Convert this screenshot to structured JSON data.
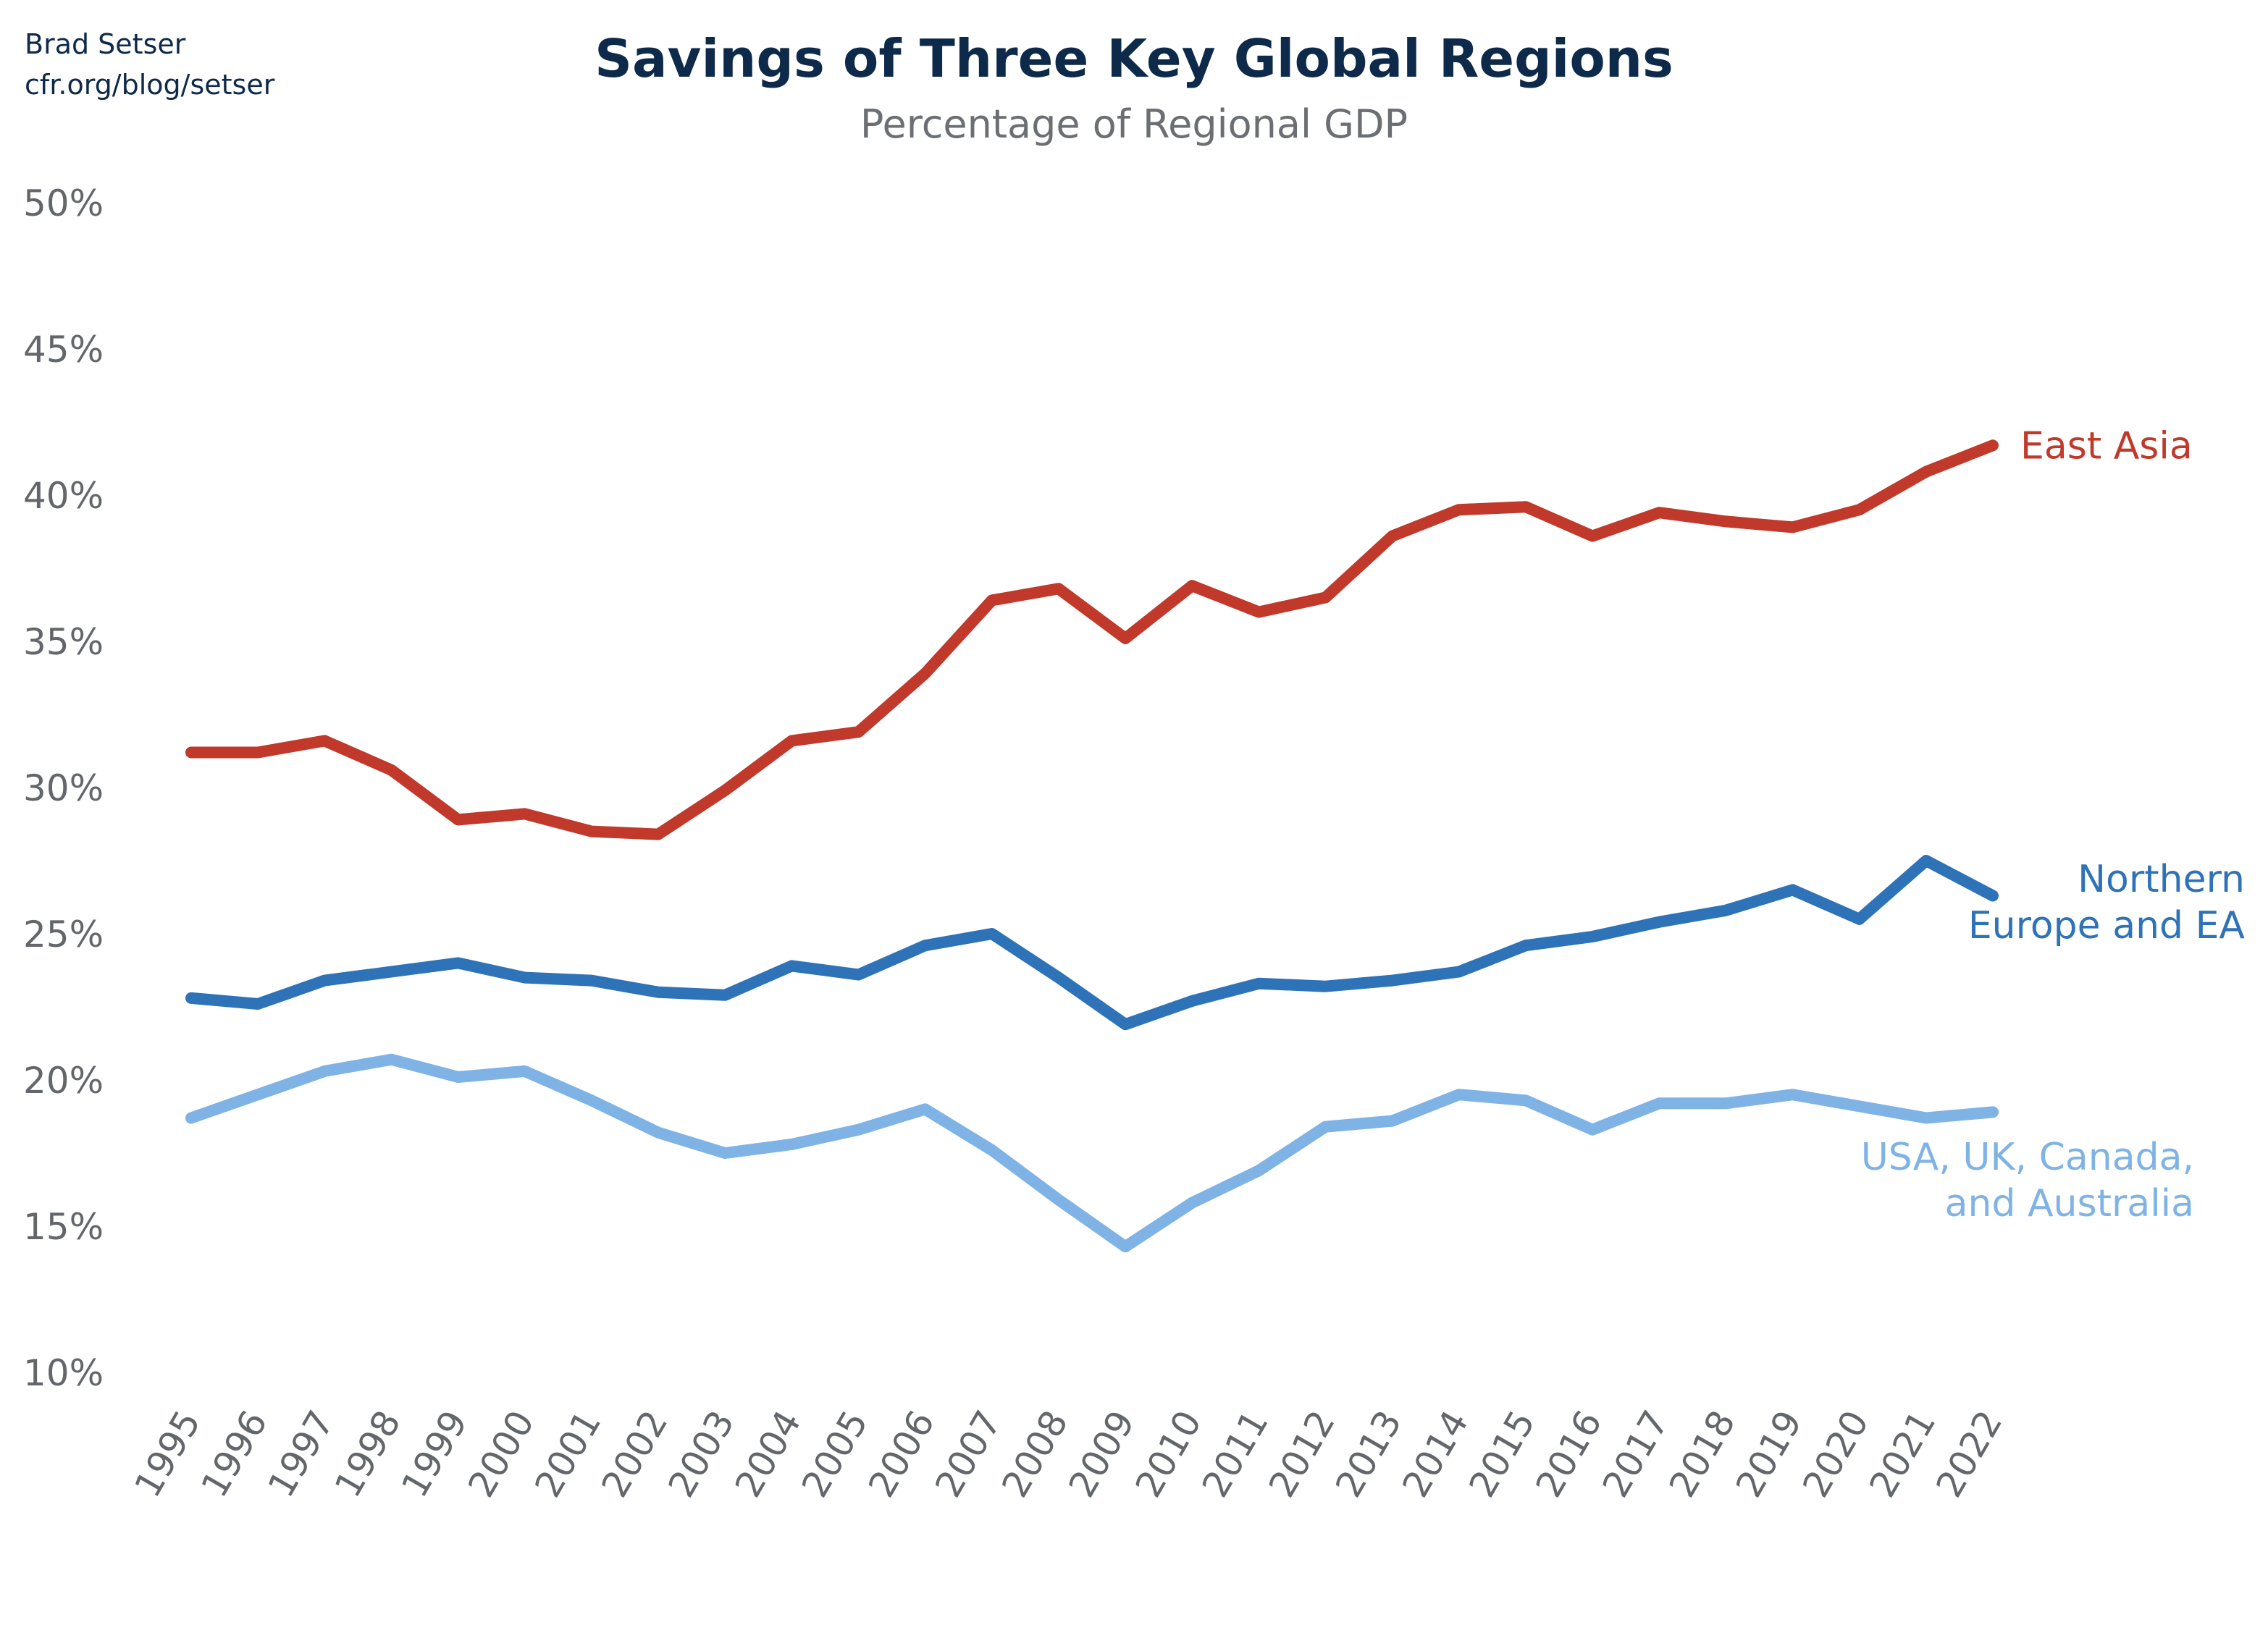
{
  "credit": {
    "author": "Brad Setser",
    "site": "cfr.org/blog/setser"
  },
  "chart_data": {
    "type": "line",
    "title": "Savings of Three Key Global Regions",
    "subtitle": "Percentage of Regional GDP",
    "xlabel": "",
    "ylabel": "",
    "ylim": [
      10,
      50
    ],
    "yticks": [
      "10%",
      "15%",
      "20%",
      "25%",
      "30%",
      "35%",
      "40%",
      "45%",
      "50%"
    ],
    "ytick_values": [
      10,
      15,
      20,
      25,
      30,
      35,
      40,
      45,
      50
    ],
    "grid": false,
    "legend": "direct labels at line ends",
    "x": [
      "1995",
      "1996",
      "1997",
      "1998",
      "1999",
      "2000",
      "2001",
      "2002",
      "2003",
      "2004",
      "2005",
      "2006",
      "2007",
      "2008",
      "2009",
      "2010",
      "2011",
      "2012",
      "2013",
      "2014",
      "2015",
      "2016",
      "2017",
      "2018",
      "2019",
      "2020",
      "2021",
      "2022"
    ],
    "series": [
      {
        "name": "East Asia",
        "label_lines": [
          "East Asia"
        ],
        "color": "#c0392b",
        "values": [
          31.2,
          31.2,
          31.6,
          30.6,
          28.9,
          29.1,
          28.5,
          28.4,
          29.9,
          31.6,
          31.9,
          33.9,
          36.4,
          36.8,
          35.1,
          36.9,
          36.0,
          36.5,
          38.6,
          39.5,
          39.6,
          38.6,
          39.4,
          39.1,
          38.9,
          39.5,
          40.8,
          41.7
        ]
      },
      {
        "name": "Northern Europe and EA",
        "label_lines": [
          "Northern",
          "Europe and EA"
        ],
        "color": "#2e72b8",
        "values": [
          22.8,
          22.6,
          23.4,
          23.7,
          24.0,
          23.5,
          23.4,
          23.0,
          22.9,
          23.9,
          23.6,
          24.6,
          25.0,
          23.5,
          21.9,
          22.7,
          23.3,
          23.2,
          23.4,
          23.7,
          24.6,
          24.9,
          25.4,
          25.8,
          26.5,
          25.5,
          27.5,
          26.3
        ]
      },
      {
        "name": "USA, UK, Canada, and Australia",
        "label_lines": [
          "USA, UK, Canada,",
          "and Australia"
        ],
        "color": "#7fb3e5",
        "values": [
          18.7,
          19.5,
          20.3,
          20.7,
          20.1,
          20.3,
          19.3,
          18.2,
          17.5,
          17.8,
          18.3,
          19.0,
          17.6,
          15.9,
          14.3,
          15.8,
          16.9,
          18.4,
          18.6,
          19.5,
          19.3,
          18.3,
          19.2,
          19.2,
          19.5,
          19.1,
          18.7,
          18.9
        ]
      }
    ]
  }
}
